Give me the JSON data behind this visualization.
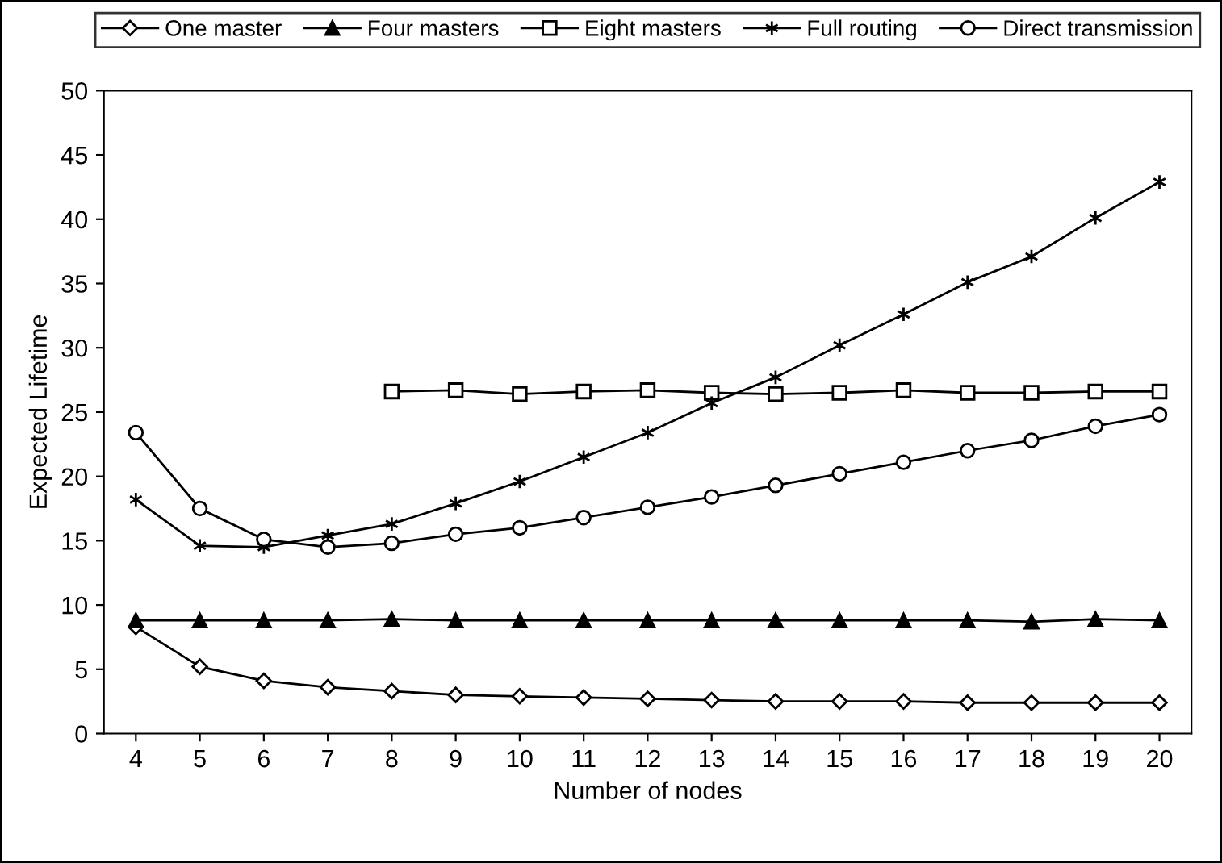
{
  "chart_data": {
    "type": "line",
    "xlabel": "Number of nodes",
    "ylabel": "Expected Lifetime",
    "categories": [
      "4",
      "5",
      "6",
      "7",
      "8",
      "9",
      "10",
      "11",
      "12",
      "13",
      "14",
      "15",
      "16",
      "17",
      "18",
      "19",
      "20"
    ],
    "ylim": [
      0,
      50
    ],
    "yticks": [
      0,
      5,
      10,
      15,
      20,
      25,
      30,
      35,
      40,
      45,
      50
    ],
    "grid": false,
    "legend": "top",
    "line_style": "solid",
    "series": [
      {
        "name": "One master",
        "color": "#000000",
        "marker": "diamond",
        "values": [
          8.3,
          5.2,
          4.1,
          3.6,
          3.3,
          3.0,
          2.9,
          2.8,
          2.7,
          2.6,
          2.5,
          2.5,
          2.5,
          2.4,
          2.4,
          2.4,
          2.4
        ]
      },
      {
        "name": "Four masters",
        "color": "#000000",
        "marker": "triangle",
        "values": [
          8.8,
          8.8,
          8.8,
          8.8,
          8.9,
          8.8,
          8.8,
          8.8,
          8.8,
          8.8,
          8.8,
          8.8,
          8.8,
          8.8,
          8.7,
          8.9,
          8.8
        ]
      },
      {
        "name": "Eight masters",
        "color": "#000000",
        "marker": "square",
        "values": [
          null,
          null,
          null,
          null,
          26.6,
          26.7,
          26.4,
          26.6,
          26.7,
          26.5,
          26.4,
          26.5,
          26.7,
          26.5,
          26.5,
          26.6,
          26.6
        ]
      },
      {
        "name": "Full routing",
        "color": "#000000",
        "marker": "cross",
        "values": [
          18.2,
          14.6,
          14.5,
          15.4,
          16.3,
          17.9,
          19.6,
          21.5,
          23.4,
          25.7,
          27.7,
          30.2,
          32.6,
          35.1,
          37.1,
          40.1,
          42.9
        ]
      },
      {
        "name": "Direct transmission",
        "color": "#000000",
        "marker": "circle",
        "values": [
          23.4,
          17.5,
          15.1,
          14.5,
          14.8,
          15.5,
          16.0,
          16.8,
          17.6,
          18.4,
          19.3,
          20.2,
          21.1,
          22.0,
          22.8,
          23.9,
          24.8
        ]
      }
    ]
  }
}
